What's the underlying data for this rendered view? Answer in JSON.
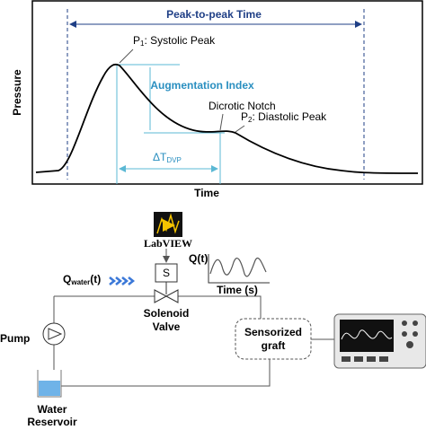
{
  "plot": {
    "title": "Peak-to-peak Time",
    "y_label": "Pressure",
    "x_label": "Time",
    "p1": {
      "main": "P",
      "sub": "1",
      "rest": ": Systolic Peak"
    },
    "augmentation": "Augmentation Index",
    "notch": "Dicrotic Notch",
    "p2": {
      "main": "P",
      "sub": "2",
      "rest": ": Diastolic Peak"
    },
    "delta": {
      "main": "ΔT",
      "sub": "DVP"
    }
  },
  "setup": {
    "software": "LabVIEW",
    "valve_control": "S",
    "flow_label": {
      "main": "Q",
      "sub": "water",
      "rest": "(t)"
    },
    "signal_label": "Q(t)",
    "signal_axis": "Time (s)",
    "valve": [
      "Solenoid",
      "Valve"
    ],
    "pump": "Pump",
    "graft": [
      "Sensorized",
      "graft"
    ],
    "reservoir": [
      "Water",
      "Reservoir"
    ]
  }
}
